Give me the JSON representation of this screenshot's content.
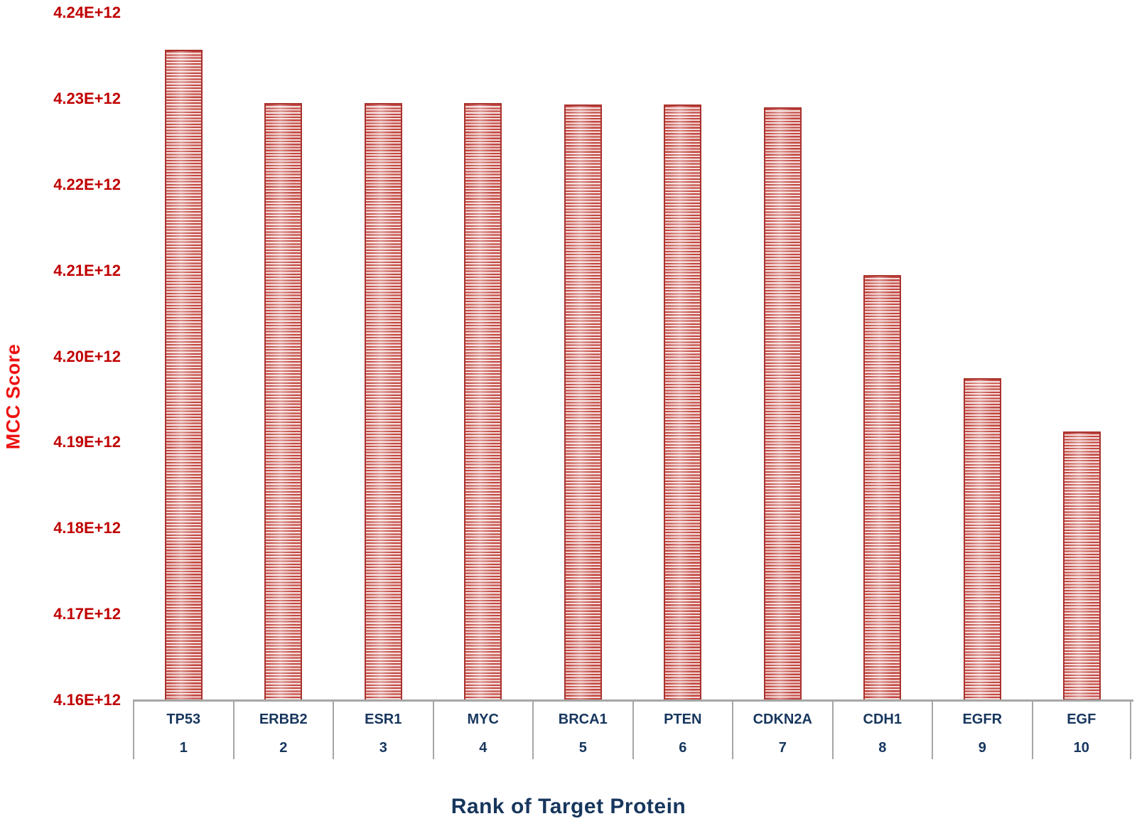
{
  "chart_data": {
    "type": "bar",
    "title": "",
    "xlabel": "Rank of Target Protein",
    "ylabel": "MCC Score",
    "categories": [
      "TP53",
      "ERBB2",
      "ESR1",
      "MYC",
      "BRCA1",
      "PTEN",
      "CDKN2A",
      "CDH1",
      "EGFR",
      "EGF"
    ],
    "ranks": [
      "1",
      "2",
      "3",
      "4",
      "5",
      "6",
      "7",
      "8",
      "9",
      "10"
    ],
    "series": [
      {
        "name": "MCC Score",
        "values_e12": [
          4.2357,
          4.2295,
          4.2295,
          4.2295,
          4.2293,
          4.2293,
          4.229,
          4.2095,
          4.1975,
          4.1913
        ]
      }
    ],
    "y_tick_labels": [
      "4.24E+12",
      "4.23E+12",
      "4.22E+12",
      "4.21E+12",
      "4.20E+12",
      "4.19E+12",
      "4.18E+12",
      "4.17E+12",
      "4.16E+12"
    ],
    "ylim_e12": [
      4.16,
      4.24
    ],
    "grid": false,
    "legend_position": "none",
    "bar_style": "horizontal-red-stripes"
  },
  "colors": {
    "background": "#ffffff",
    "y_tick_label": "#c00000",
    "y_axis_title": "#ee1111",
    "x_axis_title": "#17365d",
    "category_label": "#17365d",
    "bar_stripe_dark": "#c2453f",
    "bar_stripe_light": "#f4dcda",
    "bar_border": "#a8322e",
    "axis_line": "#a6a6a6"
  }
}
